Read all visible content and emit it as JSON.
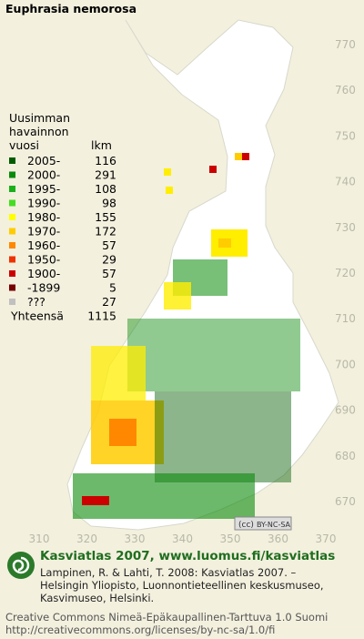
{
  "map": {
    "title": "Euphrasia nemorosa",
    "northing_labels": [
      "770",
      "760",
      "750",
      "740",
      "730",
      "720",
      "710",
      "700",
      "690",
      "680",
      "670"
    ],
    "easting_labels": [
      "310",
      "320",
      "330",
      "340",
      "350",
      "360",
      "370"
    ],
    "legend": {
      "heading": [
        "Uusimman",
        "havainnon",
        "vuosi"
      ],
      "count_heading": "lkm",
      "items": [
        {
          "label": "2005-",
          "count": "116",
          "color": "#005c00"
        },
        {
          "label": "2000-",
          "count": "291",
          "color": "#0a8a0a"
        },
        {
          "label": "1995-",
          "count": "108",
          "color": "#19b019"
        },
        {
          "label": "1990-",
          "count": "98",
          "color": "#44dd22"
        },
        {
          "label": "1980-",
          "count": "155",
          "color": "#ffff00"
        },
        {
          "label": "1970-",
          "count": "172",
          "color": "#ffcc00"
        },
        {
          "label": "1960-",
          "count": "57",
          "color": "#ff8800"
        },
        {
          "label": "1950-",
          "count": "29",
          "color": "#ee3300"
        },
        {
          "label": "1900-",
          "count": "57",
          "color": "#cc0000"
        },
        {
          "label": "-1899",
          "count": "5",
          "color": "#770000"
        },
        {
          "label": "???",
          "count": "27",
          "color": "#c0c0c0"
        }
      ],
      "total_label": "Yhteensä",
      "total": "1115"
    },
    "badge": "BY-NC-SA"
  },
  "footer": {
    "heading": "Kasviatlas 2007, www.luomus.fi/kasviatlas",
    "citation": [
      "Lampinen, R. & Lahti, T. 2008: Kasviatlas 2007. –",
      "Helsingin Yliopisto, Luonnontieteellinen keskusmuseo,",
      "Kasvimuseo, Helsinki."
    ],
    "license": [
      "Creative Commons Nimeä-Epäkaupallinen-Tarttuva 1.0 Suomi",
      "http://creativecommons.org/licenses/by-nc-sa/1.0/fi"
    ]
  }
}
